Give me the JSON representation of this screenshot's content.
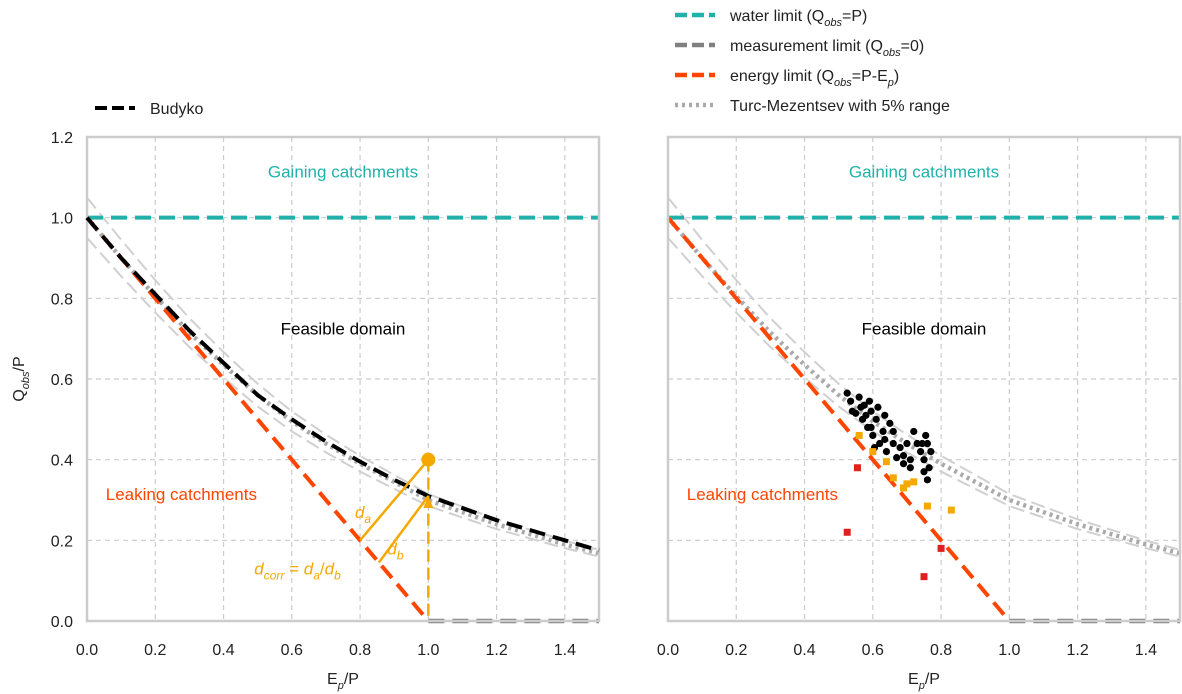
{
  "chart_data": [
    {
      "type": "line",
      "panel": "left",
      "title": "",
      "xlabel": "E_p/P",
      "ylabel": "Q_obs/P",
      "xlim": [
        0,
        1.5
      ],
      "ylim": [
        0,
        1.2
      ],
      "x_ticks": [
        "0.0",
        "0.2",
        "0.4",
        "0.6",
        "0.8",
        "1.0",
        "1.2",
        "1.4"
      ],
      "y_ticks": [
        "0.0",
        "0.2",
        "0.4",
        "0.6",
        "0.8",
        "1.0",
        "1.2"
      ],
      "grid": true,
      "legend_placement": "top-left, outside plot",
      "series": [
        {
          "name": "water limit (Q_obs=P)",
          "x": [
            0,
            1.5
          ],
          "y": [
            1,
            1
          ]
        },
        {
          "name": "measurement limit (Q_obs=0)",
          "x": [
            1,
            1.5
          ],
          "y": [
            0,
            0
          ]
        },
        {
          "name": "energy limit (Q_obs=P-E_p)",
          "x": [
            0,
            1
          ],
          "y": [
            1,
            0
          ]
        },
        {
          "name": "Budyko",
          "x": [
            0,
            0.1,
            0.2,
            0.3,
            0.4,
            0.5,
            0.6,
            0.7,
            0.8,
            0.9,
            1.0,
            1.1,
            1.2,
            1.3,
            1.4,
            1.5
          ],
          "y": [
            1.0,
            0.9,
            0.81,
            0.72,
            0.64,
            0.56,
            0.5,
            0.445,
            0.395,
            0.35,
            0.31,
            0.28,
            0.25,
            0.225,
            0.2,
            0.175
          ]
        },
        {
          "name": "Turc-Mezentsev with 5% range",
          "x": [
            0,
            0.1,
            0.2,
            0.3,
            0.4,
            0.5,
            0.6,
            0.7,
            0.8,
            0.9,
            1.0,
            1.1,
            1.2,
            1.3,
            1.4,
            1.5
          ],
          "y": [
            1.0,
            0.9,
            0.805,
            0.715,
            0.635,
            0.56,
            0.495,
            0.44,
            0.39,
            0.345,
            0.3,
            0.27,
            0.24,
            0.215,
            0.19,
            0.168
          ]
        }
      ],
      "example_point": {
        "x": 1.0,
        "y": 0.4
      },
      "annotations": {
        "gaining": "Gaining catchments",
        "feasible": "Feasible domain",
        "leaking": "Leaking catchments",
        "da": "d",
        "da_sub": "a",
        "db": "d",
        "db_sub": "b",
        "dcorr_prefix": "d",
        "dcorr_sub": "corr",
        "dcorr_eq": " = ",
        "dcorr_slash": "/"
      }
    },
    {
      "type": "scatter",
      "panel": "right",
      "title": "",
      "xlabel": "E_p/P",
      "xlim": [
        0,
        1.5
      ],
      "ylim": [
        0,
        1.2
      ],
      "x_ticks": [
        "0.0",
        "0.2",
        "0.4",
        "0.6",
        "0.8",
        "1.0",
        "1.2",
        "1.4"
      ],
      "grid": true,
      "legend_placement": "top, outside plot",
      "annotations": {
        "gaining": "Gaining catchments",
        "feasible": "Feasible domain",
        "leaking": "Leaking catchments"
      },
      "series": [
        {
          "marker": "circle",
          "color": "#000000",
          "points": [
            [
              0.525,
              0.565
            ],
            [
              0.535,
              0.545
            ],
            [
              0.54,
              0.52
            ],
            [
              0.55,
              0.515
            ],
            [
              0.56,
              0.555
            ],
            [
              0.565,
              0.53
            ],
            [
              0.57,
              0.5
            ],
            [
              0.575,
              0.535
            ],
            [
              0.58,
              0.51
            ],
            [
              0.585,
              0.48
            ],
            [
              0.59,
              0.545
            ],
            [
              0.595,
              0.52
            ],
            [
              0.6,
              0.46
            ],
            [
              0.605,
              0.43
            ],
            [
              0.61,
              0.5
            ],
            [
              0.615,
              0.53
            ],
            [
              0.62,
              0.44
            ],
            [
              0.63,
              0.47
            ],
            [
              0.635,
              0.45
            ],
            [
              0.64,
              0.42
            ],
            [
              0.65,
              0.49
            ],
            [
              0.66,
              0.44
            ],
            [
              0.67,
              0.405
            ],
            [
              0.68,
              0.43
            ],
            [
              0.69,
              0.41
            ],
            [
              0.7,
              0.44
            ],
            [
              0.71,
              0.4
            ],
            [
              0.72,
              0.47
            ],
            [
              0.73,
              0.44
            ],
            [
              0.74,
              0.42
            ],
            [
              0.75,
              0.4
            ],
            [
              0.755,
              0.46
            ],
            [
              0.76,
              0.44
            ],
            [
              0.765,
              0.38
            ],
            [
              0.75,
              0.37
            ],
            [
              0.76,
              0.35
            ],
            [
              0.77,
              0.42
            ],
            [
              0.745,
              0.44
            ],
            [
              0.69,
              0.39
            ],
            [
              0.71,
              0.38
            ],
            [
              0.595,
              0.48
            ],
            [
              0.635,
              0.51
            ],
            [
              0.66,
              0.47
            ]
          ]
        },
        {
          "marker": "square",
          "color": "#f5a800",
          "points": [
            [
              0.56,
              0.46
            ],
            [
              0.6,
              0.42
            ],
            [
              0.64,
              0.395
            ],
            [
              0.66,
              0.355
            ],
            [
              0.7,
              0.34
            ],
            [
              0.72,
              0.345
            ],
            [
              0.69,
              0.33
            ],
            [
              0.76,
              0.285
            ],
            [
              0.83,
              0.275
            ]
          ]
        },
        {
          "marker": "square",
          "color": "#e02020",
          "points": [
            [
              0.555,
              0.38
            ],
            [
              0.525,
              0.22
            ],
            [
              0.8,
              0.18
            ],
            [
              0.75,
              0.11
            ]
          ]
        }
      ]
    }
  ],
  "legend_left": [
    {
      "label": "Budyko",
      "style": "dash",
      "color": "#000000"
    }
  ],
  "legend_right": [
    {
      "base": "water limit (Q",
      "sub": "obs",
      "rest": "=P)",
      "sub2": "",
      "tail": "",
      "style": "dash",
      "color": "#20b2aa"
    },
    {
      "base": "measurement limit (Q",
      "sub": "obs",
      "rest": "=0)",
      "sub2": "",
      "tail": "",
      "style": "dash",
      "color": "#808080"
    },
    {
      "base": "energy limit (Q",
      "sub": "obs",
      "rest": "=P-E",
      "sub2": "p",
      "tail": ")",
      "style": "dash",
      "color": "#ff4500"
    },
    {
      "base": "Turc-Mezentsev with 5% range",
      "sub": "",
      "rest": "",
      "sub2": "",
      "tail": "",
      "style": "dot",
      "color": "#aaaaaa"
    }
  ],
  "axis_text": {
    "ylabel_base": "Q",
    "ylabel_sub": "obs",
    "ylabel_rest": "/P",
    "xlabel_base": "E",
    "xlabel_sub": "p",
    "xlabel_rest": "/P"
  },
  "colors": {
    "water": "#20b2aa",
    "measurement": "#808080",
    "energy": "#ff4500",
    "budyko": "#000000",
    "turc": "#aaaaaa",
    "range": "#d0d0d0",
    "orange": "#f5a800",
    "red": "#e02020",
    "grid": "#cccccc",
    "spine": "#cccccc"
  }
}
